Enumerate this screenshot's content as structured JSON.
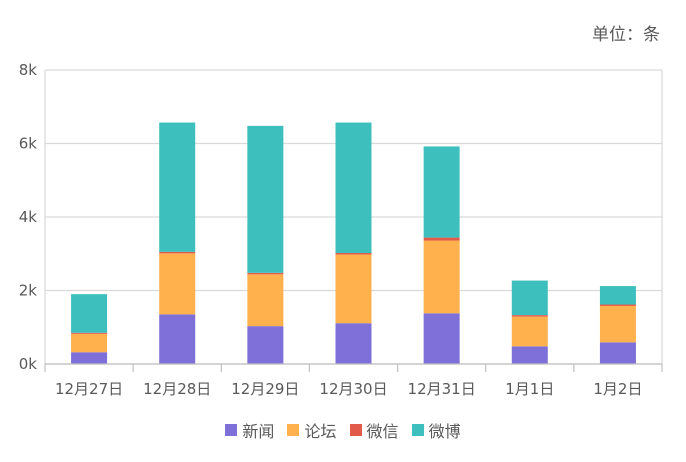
{
  "chart_data": {
    "type": "bar",
    "stacked": true,
    "unit_label": "单位：条",
    "categories": [
      "12月27日",
      "12月28日",
      "12月29日",
      "12月30日",
      "12月31日",
      "1月1日",
      "1月2日"
    ],
    "ylim": [
      0,
      8000
    ],
    "yticks": [
      0,
      2000,
      4000,
      6000,
      8000
    ],
    "ytick_labels": [
      "0k",
      "2k",
      "4k",
      "6k",
      "8k"
    ],
    "grid": true,
    "legend_position": "bottom",
    "series": [
      {
        "name": "新闻",
        "color": "#7e70d8",
        "values": [
          320,
          1350,
          1030,
          1110,
          1380,
          480,
          590
        ]
      },
      {
        "name": "论坛",
        "color": "#ffb14d",
        "values": [
          500,
          1660,
          1410,
          1870,
          1980,
          810,
          990
        ]
      },
      {
        "name": "微信",
        "color": "#e15a4a",
        "values": [
          30,
          40,
          40,
          40,
          80,
          40,
          40
        ]
      },
      {
        "name": "微博",
        "color": "#3dbfbe",
        "values": [
          1050,
          3520,
          4000,
          3550,
          2480,
          940,
          500
        ]
      }
    ]
  }
}
